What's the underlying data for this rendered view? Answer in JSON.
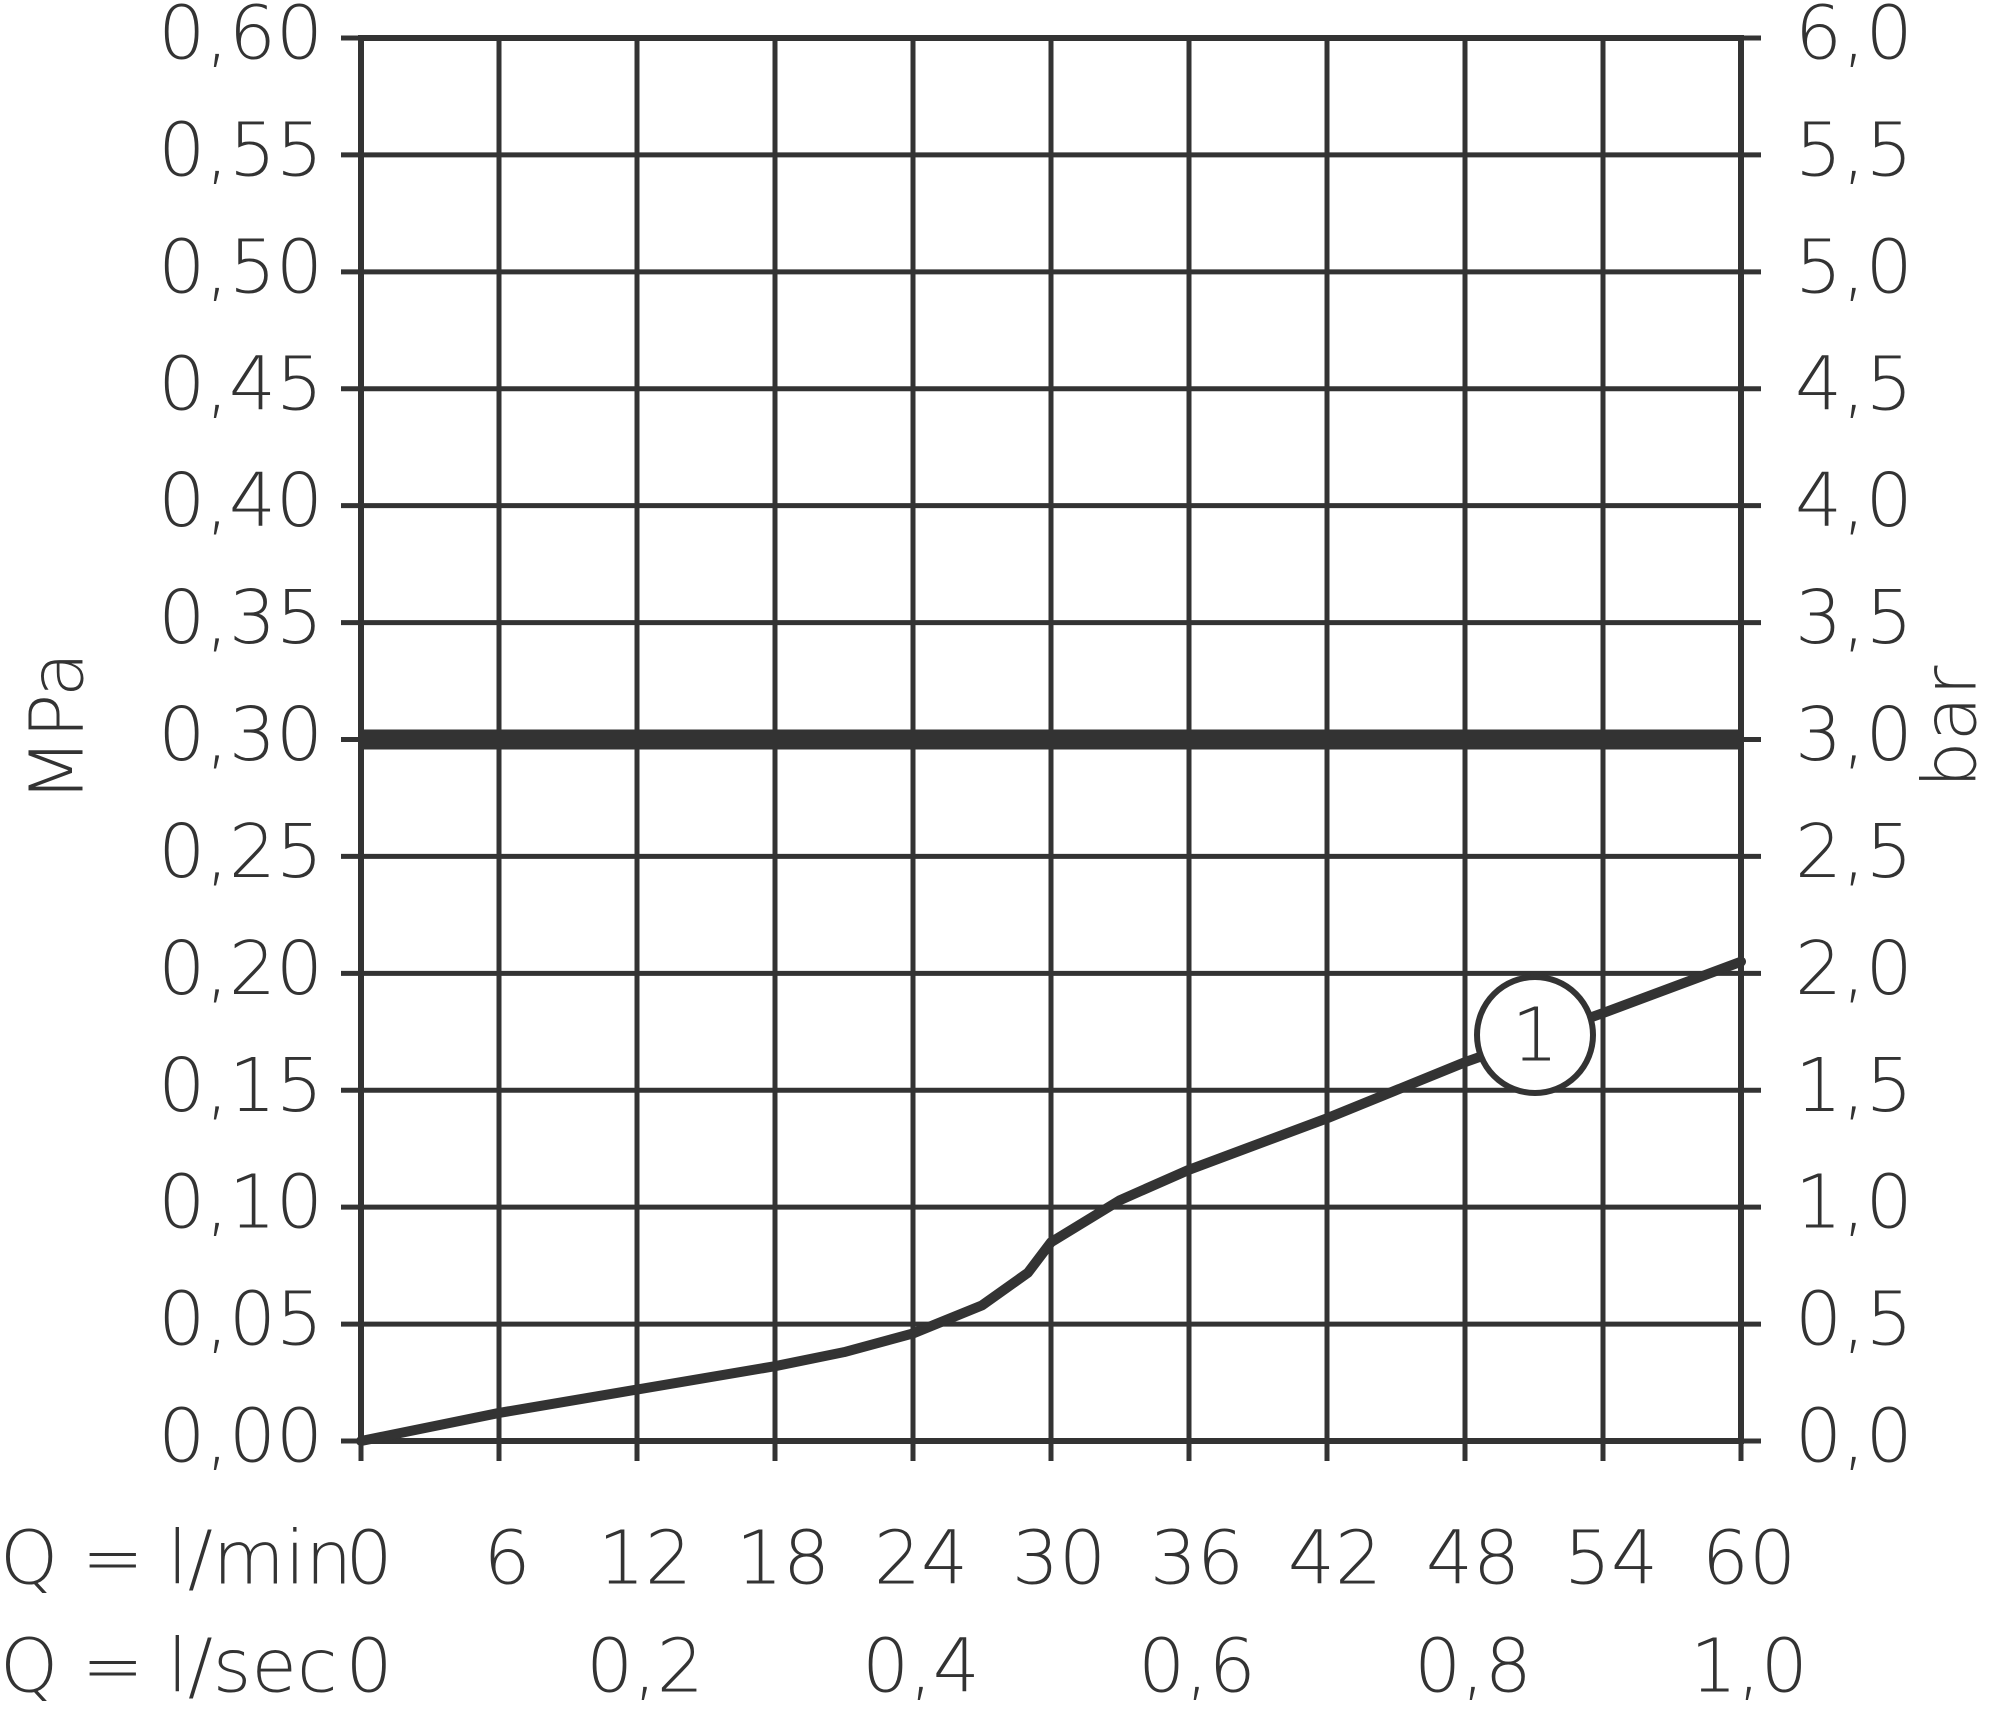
{
  "chart_data": {
    "type": "line",
    "x_label": "Q = l/min",
    "x2_label": "Q = l/sec",
    "y_label": "MPa",
    "y2_label": "bar",
    "x": [
      0,
      6,
      12,
      18,
      21,
      24,
      27,
      29,
      30,
      33,
      36,
      42,
      48,
      54,
      60
    ],
    "series": [
      {
        "color": "#333333",
        "values": [
          0,
          0.012,
          0.022,
          0.032,
          0.038,
          0.046,
          0.058,
          0.072,
          0.085,
          0.103,
          0.116,
          0.138,
          0.162,
          0.183,
          0.205
        ]
      }
    ],
    "xlim": [
      0,
      60
    ],
    "xticks": [
      0,
      6,
      12,
      18,
      24,
      30,
      36,
      42,
      48,
      54,
      60
    ],
    "x2lim": [
      0,
      1
    ],
    "x2ticks": [
      0,
      {
        "value": 0.2,
        "label": "0,2"
      },
      {
        "value": 0.4,
        "label": "0,4"
      },
      {
        "value": 0.6,
        "label": "0,6"
      },
      {
        "value": 0.8,
        "label": "0,8"
      },
      {
        "value": 1.0,
        "label": "1,0"
      }
    ],
    "ylim": [
      0,
      0.6
    ],
    "yticks": [
      {
        "value": 0,
        "label": "0,00"
      },
      {
        "value": 0.05,
        "label": "0,05"
      },
      {
        "value": 0.1,
        "label": "0,10"
      },
      {
        "value": 0.15,
        "label": "0,15"
      },
      {
        "value": 0.2,
        "label": "0,20"
      },
      {
        "value": 0.25,
        "label": "0,25"
      },
      {
        "value": 0.3,
        "label": "0,30"
      },
      {
        "value": 0.35,
        "label": "0,35"
      },
      {
        "value": 0.4,
        "label": "0,40"
      },
      {
        "value": 0.45,
        "label": "0,45"
      },
      {
        "value": 0.5,
        "label": "0,50"
      },
      {
        "value": 0.55,
        "label": "0,55"
      },
      {
        "value": 0.6,
        "label": "0,60"
      }
    ],
    "y2lim": [
      0,
      6
    ],
    "y2ticks": [
      {
        "value": 0,
        "label": "0,0"
      },
      {
        "value": 0.5,
        "label": "0,5"
      },
      {
        "value": 1,
        "label": "1,0"
      },
      {
        "value": 1.5,
        "label": "1,5"
      },
      {
        "value": 2,
        "label": "2,0"
      },
      {
        "value": 2.5,
        "label": "2,5"
      },
      {
        "value": 3,
        "label": "3,0"
      },
      {
        "value": 3.5,
        "label": "3,5"
      },
      {
        "value": 4,
        "label": "4,0"
      },
      {
        "value": 4.5,
        "label": "4,5"
      },
      {
        "value": 5,
        "label": "5,0"
      },
      {
        "value": 5.5,
        "label": "5,5"
      },
      {
        "value": 6,
        "label": "6,0"
      }
    ],
    "reference_line": 0.3,
    "annotation": "1",
    "grid": true
  }
}
